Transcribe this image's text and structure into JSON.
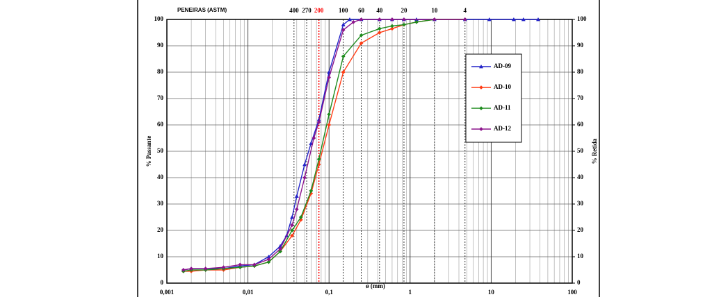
{
  "chart_data": {
    "type": "line",
    "log_x": true,
    "title": "PENEIRAS (ASTM)",
    "x_label": "ø (mm)",
    "y_label": "% Passante",
    "y2_label": "% Retida",
    "xlim": [
      0.001,
      100
    ],
    "xticks": [
      {
        "value": 0.001,
        "label": "0,001"
      },
      {
        "value": 0.01,
        "label": "0,01"
      },
      {
        "value": 0.1,
        "label": "0,1"
      },
      1,
      10,
      100
    ],
    "ylim": [
      0,
      100
    ],
    "yticks": [
      0,
      10,
      20,
      30,
      40,
      50,
      60,
      70,
      80,
      90,
      100
    ],
    "y2lim": [
      0,
      100
    ],
    "y2ticks": [
      0,
      10,
      20,
      30,
      40,
      50,
      60,
      70,
      80,
      90,
      100
    ],
    "grid": true,
    "legend": "upper right",
    "sieves": [
      {
        "value": 0.037,
        "label": "400",
        "color": "#000000"
      },
      {
        "value": 0.053,
        "label": "270",
        "color": "#000000"
      },
      {
        "value": 0.075,
        "label": "200",
        "color": "#ff0000"
      },
      {
        "value": 0.15,
        "label": "100",
        "color": "#000000"
      },
      {
        "value": 0.25,
        "label": "60",
        "color": "#000000"
      },
      {
        "value": 0.42,
        "label": "40",
        "color": "#000000"
      },
      {
        "value": 0.84,
        "label": "20",
        "color": "#000000"
      },
      {
        "value": 2,
        "label": "10",
        "color": "#000000"
      },
      {
        "value": 4.76,
        "label": "4",
        "color": "#000000"
      }
    ],
    "series": [
      {
        "name": "AD-09",
        "color": "#2323c8",
        "marker": "triangle",
        "x": [
          0.0016,
          0.002,
          0.003,
          0.005,
          0.008,
          0.012,
          0.018,
          0.025,
          0.03,
          0.035,
          0.04,
          0.05,
          0.06,
          0.075,
          0.1,
          0.15,
          0.18,
          0.25,
          0.42,
          0.6,
          0.84,
          1.2,
          2,
          4.76,
          9.5,
          19,
          25,
          38
        ],
        "values": [
          5,
          5.5,
          5.5,
          5.5,
          6.5,
          7,
          10,
          14,
          18,
          25,
          33,
          45,
          53,
          62,
          80,
          98,
          100,
          100,
          100,
          100,
          100,
          100,
          100,
          100,
          100,
          100,
          100,
          100
        ]
      },
      {
        "name": "AD-10",
        "color": "#ff3c14",
        "marker": "diamond",
        "x": [
          0.0016,
          0.002,
          0.003,
          0.005,
          0.008,
          0.012,
          0.018,
          0.025,
          0.035,
          0.045,
          0.06,
          0.075,
          0.1,
          0.15,
          0.25,
          0.42,
          0.6,
          0.84,
          1.2,
          2,
          4.76
        ],
        "values": [
          4.5,
          4.5,
          5,
          5,
          6,
          6.5,
          8,
          12,
          18,
          24,
          34,
          45,
          60,
          80,
          91,
          95,
          96.5,
          98,
          99,
          100,
          100
        ]
      },
      {
        "name": "AD-11",
        "color": "#1e8c1e",
        "marker": "diamond",
        "x": [
          0.0016,
          0.002,
          0.003,
          0.005,
          0.008,
          0.012,
          0.018,
          0.025,
          0.035,
          0.045,
          0.06,
          0.075,
          0.1,
          0.15,
          0.25,
          0.42,
          0.6,
          0.84,
          1.2,
          2,
          4.76
        ],
        "values": [
          4.5,
          5,
          5,
          5.5,
          6,
          6.5,
          8,
          12,
          20,
          25,
          35,
          47,
          64,
          86,
          94,
          96.5,
          97.5,
          98,
          99,
          100,
          100
        ]
      },
      {
        "name": "AD-12",
        "color": "#8c148c",
        "marker": "diamond",
        "x": [
          0.0016,
          0.002,
          0.003,
          0.005,
          0.008,
          0.012,
          0.018,
          0.025,
          0.035,
          0.04,
          0.05,
          0.065,
          0.075,
          0.1,
          0.15,
          0.2,
          0.25,
          0.42,
          0.6,
          0.84,
          2,
          4.76
        ],
        "values": [
          5,
          5.5,
          5.5,
          6,
          7,
          7,
          9,
          13,
          22,
          28,
          40,
          55,
          61,
          78,
          96,
          99,
          100,
          100,
          100,
          100,
          100,
          100
        ]
      }
    ]
  }
}
